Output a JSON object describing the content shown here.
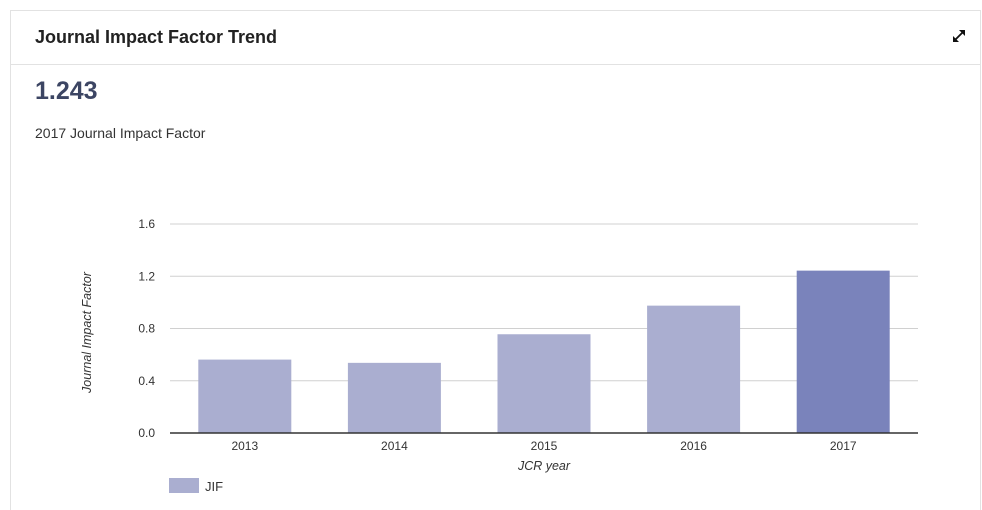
{
  "card": {
    "title": "Journal Impact Factor Trend"
  },
  "metric": {
    "value": "1.243",
    "label": "2017 Journal Impact Factor"
  },
  "icons": {
    "expand": "expand-icon"
  },
  "colors": {
    "bar": "#aaaed0",
    "bar_highlight": "#7a83bb",
    "grid": "#d0d0d0",
    "axis": "#333333",
    "metric": "#3c4563"
  },
  "chart_data": {
    "type": "bar",
    "categories": [
      "2013",
      "2014",
      "2015",
      "2016",
      "2017"
    ],
    "series": [
      {
        "name": "JIF",
        "values": [
          0.562,
          0.537,
          0.756,
          0.975,
          1.243
        ]
      }
    ],
    "highlight_category": "2017",
    "title": "",
    "xlabel": "JCR year",
    "ylabel": "Journal Impact Factor",
    "ylim": [
      0,
      1.6
    ],
    "yticks": [
      "0.0",
      "0.4",
      "0.8",
      "1.2",
      "1.6"
    ],
    "grid": true,
    "legend_position": "bottom-left"
  }
}
